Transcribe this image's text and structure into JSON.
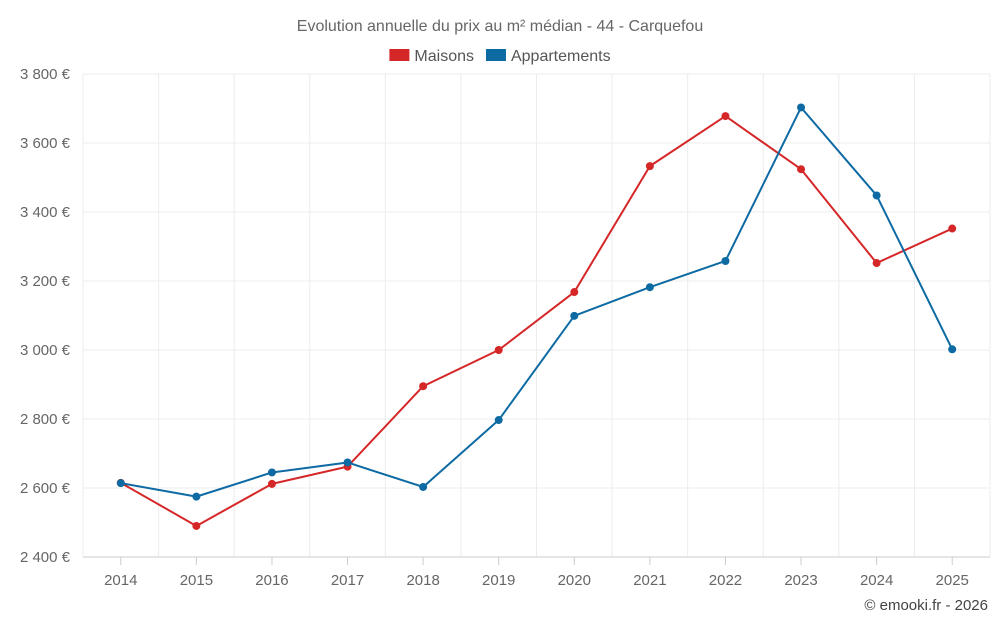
{
  "chart_data": {
    "type": "line",
    "title": "Evolution annuelle du prix au m² médian - 44 - Carquefou",
    "categories": [
      "2014",
      "2015",
      "2016",
      "2017",
      "2018",
      "2019",
      "2020",
      "2021",
      "2022",
      "2023",
      "2024",
      "2025"
    ],
    "series": [
      {
        "name": "Maisons",
        "color": "#d62728",
        "values": [
          2615,
          2490,
          2612,
          2662,
          2895,
          3000,
          3168,
          3533,
          3678,
          3524,
          3252,
          3352
        ]
      },
      {
        "name": "Appartements",
        "color": "#0e6aa3",
        "values": [
          2614,
          2575,
          2645,
          2674,
          2603,
          2797,
          3099,
          3182,
          3258,
          3703,
          3448,
          3002
        ]
      }
    ],
    "yticks": [
      2400,
      2600,
      2800,
      3000,
      3200,
      3400,
      3600,
      3800
    ],
    "ytick_labels": [
      "2 400 €",
      "2 600 €",
      "2 800 €",
      "3 000 €",
      "3 200 €",
      "3 400 €",
      "3 600 €",
      "3 800 €"
    ],
    "ylim": [
      2400,
      3800
    ],
    "xlabel": "",
    "ylabel": "",
    "grid": true,
    "legend_position": "top-center"
  },
  "footer": {
    "copyright": "© emooki.fr - 2026"
  }
}
